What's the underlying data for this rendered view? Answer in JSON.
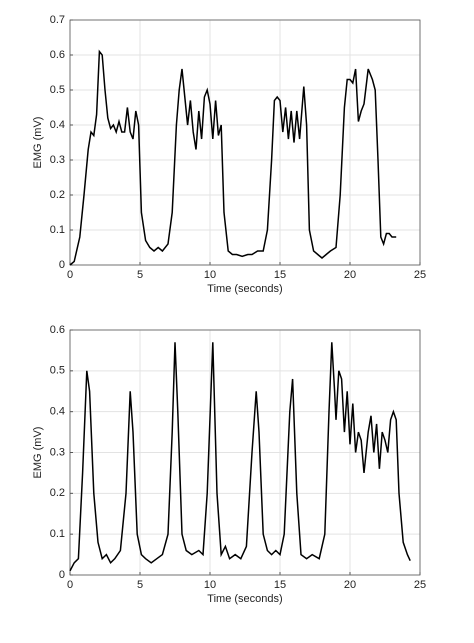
{
  "chart_data": [
    {
      "type": "line",
      "xlabel": "Time (seconds)",
      "ylabel": "EMG (mV)",
      "color": "#000000",
      "grid": true,
      "xlim": [
        0,
        25
      ],
      "xticks": [
        0,
        5,
        10,
        15,
        20,
        25
      ],
      "ylim": [
        0,
        0.7
      ],
      "yticks": [
        0,
        0.1,
        0.2,
        0.3,
        0.4,
        0.5,
        0.6,
        0.7
      ],
      "x": [
        0,
        0.3,
        0.7,
        1,
        1.3,
        1.5,
        1.7,
        1.9,
        2.1,
        2.3,
        2.5,
        2.7,
        2.9,
        3.1,
        3.3,
        3.5,
        3.7,
        3.9,
        4.1,
        4.3,
        4.5,
        4.7,
        4.9,
        5.1,
        5.4,
        5.7,
        6,
        6.3,
        6.6,
        7,
        7.3,
        7.6,
        7.8,
        8,
        8.2,
        8.4,
        8.6,
        8.8,
        9,
        9.2,
        9.4,
        9.6,
        9.8,
        10,
        10.2,
        10.4,
        10.6,
        10.8,
        11,
        11.3,
        11.6,
        11.9,
        12.3,
        12.7,
        13,
        13.4,
        13.8,
        14.1,
        14.4,
        14.6,
        14.8,
        15,
        15.2,
        15.4,
        15.6,
        15.8,
        16,
        16.2,
        16.4,
        16.7,
        16.9,
        17.1,
        17.4,
        17.7,
        18,
        18.3,
        18.6,
        19,
        19.3,
        19.6,
        19.8,
        20,
        20.2,
        20.4,
        20.6,
        20.8,
        21,
        21.3,
        21.6,
        21.8,
        22,
        22.2,
        22.4,
        22.6,
        22.8,
        23,
        23.3
      ],
      "values": [
        0,
        0.01,
        0.08,
        0.2,
        0.33,
        0.38,
        0.37,
        0.43,
        0.61,
        0.6,
        0.5,
        0.42,
        0.39,
        0.4,
        0.38,
        0.41,
        0.38,
        0.38,
        0.45,
        0.38,
        0.36,
        0.44,
        0.4,
        0.15,
        0.07,
        0.05,
        0.04,
        0.05,
        0.04,
        0.06,
        0.15,
        0.4,
        0.5,
        0.56,
        0.48,
        0.4,
        0.47,
        0.38,
        0.33,
        0.44,
        0.36,
        0.48,
        0.5,
        0.46,
        0.36,
        0.47,
        0.37,
        0.4,
        0.15,
        0.04,
        0.03,
        0.03,
        0.025,
        0.03,
        0.03,
        0.04,
        0.04,
        0.1,
        0.3,
        0.47,
        0.48,
        0.47,
        0.38,
        0.45,
        0.36,
        0.44,
        0.35,
        0.44,
        0.36,
        0.51,
        0.4,
        0.1,
        0.04,
        0.03,
        0.02,
        0.03,
        0.04,
        0.05,
        0.2,
        0.45,
        0.53,
        0.53,
        0.52,
        0.56,
        0.41,
        0.44,
        0.46,
        0.56,
        0.53,
        0.5,
        0.3,
        0.08,
        0.06,
        0.09,
        0.09,
        0.08,
        0.08
      ]
    },
    {
      "type": "line",
      "xlabel": "Time (seconds)",
      "ylabel": "EMG (mV)",
      "color": "#000000",
      "grid": true,
      "xlim": [
        0,
        25
      ],
      "xticks": [
        0,
        5,
        10,
        15,
        20,
        25
      ],
      "ylim": [
        0,
        0.6
      ],
      "yticks": [
        0,
        0.1,
        0.2,
        0.3,
        0.4,
        0.5,
        0.6
      ],
      "x": [
        0,
        0.3,
        0.6,
        0.9,
        1.2,
        1.4,
        1.7,
        2,
        2.3,
        2.6,
        2.9,
        3.2,
        3.6,
        4,
        4.3,
        4.5,
        4.8,
        5.1,
        5.4,
        5.8,
        6.2,
        6.6,
        7,
        7.3,
        7.5,
        7.7,
        8,
        8.3,
        8.7,
        9.2,
        9.5,
        9.8,
        10.2,
        10.5,
        10.8,
        11.1,
        11.4,
        11.8,
        12.2,
        12.6,
        13,
        13.3,
        13.5,
        13.8,
        14.1,
        14.4,
        14.7,
        15,
        15.3,
        15.7,
        15.9,
        16.2,
        16.5,
        16.9,
        17.3,
        17.8,
        18.2,
        18.5,
        18.7,
        18.9,
        19,
        19.2,
        19.4,
        19.6,
        19.8,
        20,
        20.2,
        20.4,
        20.6,
        20.8,
        21,
        21.3,
        21.5,
        21.7,
        21.9,
        22.1,
        22.3,
        22.5,
        22.7,
        22.9,
        23.1,
        23.3,
        23.5,
        23.8,
        24.1,
        24.3
      ],
      "values": [
        0.01,
        0.03,
        0.04,
        0.25,
        0.5,
        0.45,
        0.2,
        0.08,
        0.04,
        0.05,
        0.03,
        0.04,
        0.06,
        0.2,
        0.45,
        0.35,
        0.1,
        0.05,
        0.04,
        0.03,
        0.04,
        0.05,
        0.1,
        0.35,
        0.57,
        0.4,
        0.1,
        0.06,
        0.05,
        0.06,
        0.05,
        0.2,
        0.57,
        0.2,
        0.05,
        0.07,
        0.04,
        0.05,
        0.04,
        0.07,
        0.3,
        0.45,
        0.35,
        0.1,
        0.06,
        0.05,
        0.06,
        0.05,
        0.1,
        0.4,
        0.48,
        0.2,
        0.05,
        0.04,
        0.05,
        0.04,
        0.1,
        0.4,
        0.57,
        0.45,
        0.38,
        0.5,
        0.48,
        0.35,
        0.45,
        0.32,
        0.42,
        0.3,
        0.35,
        0.33,
        0.25,
        0.35,
        0.39,
        0.3,
        0.37,
        0.26,
        0.35,
        0.33,
        0.3,
        0.38,
        0.4,
        0.38,
        0.2,
        0.08,
        0.05,
        0.035
      ]
    }
  ]
}
